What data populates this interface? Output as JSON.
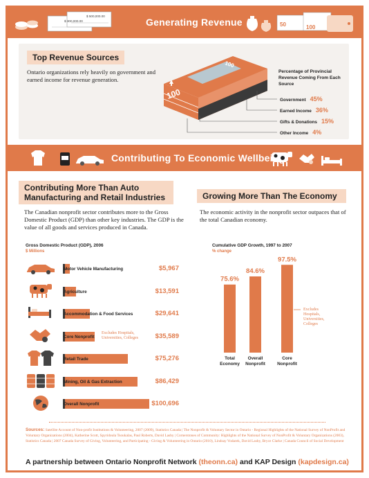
{
  "header": {
    "title": "Generating Revenue",
    "cheque_amount_1": "$ 500,000.00",
    "cheque_amount_2": "$ 300,000.00",
    "bill_value_small": "50",
    "bill_value_large": "100"
  },
  "top_revenue": {
    "heading": "Top Revenue Sources",
    "intro": "Ontario organizations rely heavily on government and earned income for revenue generation.",
    "legend_title": "Percentage of Provincial Revenue Coming From Each Source",
    "bill_value": "100",
    "sources": [
      {
        "label": "Government",
        "pct_label": "45%",
        "value": 45
      },
      {
        "label": "Earned Income",
        "pct_label": "36%",
        "value": 36
      },
      {
        "label": "Gifts & Donations",
        "pct_label": "15%",
        "value": 15
      },
      {
        "label": "Other Income",
        "pct_label": "4%",
        "value": 4
      }
    ]
  },
  "wellbeing": {
    "title": "Contributing To Economic Wellbeing"
  },
  "auto": {
    "heading_line1": "Contributing More Than Auto",
    "heading_line2": "Manufacturing and Retail Industries",
    "body": "The Canadian nonprofit sector contributes more to the Gross Domestic Product (GDP) than other key industries. The GDP is the value of all goods and services produced in Canada."
  },
  "growing": {
    "heading": "Growing More Than The Economy",
    "body": "The economic activity in the nonprofit sector outpaces that of the total Canadian economy."
  },
  "chart_data": [
    {
      "type": "bar",
      "orientation": "horizontal",
      "title": "Gross Domestic Product (GDP), 2006",
      "unit_label": "$ Millions",
      "categories": [
        "Motor Vehicle Manufacturing",
        "Agriculture",
        "Accommodation & Food Services",
        "Core Nonprofit",
        "Retail Trade",
        "Mining, Oil & Gas Extraction",
        "Overall Nonprofit"
      ],
      "values": [
        5967,
        13591,
        29641,
        35589,
        75276,
        86429,
        100696
      ],
      "value_labels": [
        "$5,967",
        "$13,591",
        "$29,641",
        "$35,589",
        "$75,276",
        "$86,429",
        "$100,696"
      ],
      "annotation": "Excludes Hospitals, Universities, Colleges",
      "xlim": [
        0,
        100696
      ]
    },
    {
      "type": "bar",
      "title": "Cumulative GDP Growth, 1997 to 2007",
      "unit_label": "% change",
      "categories": [
        "Total Economy",
        "Overall Nonprofit",
        "Core Nonprofit"
      ],
      "values": [
        75.6,
        84.6,
        97.5
      ],
      "value_labels": [
        "75.6%",
        "84.6%",
        "97.5%"
      ],
      "annotation": "Excludes Hospitals, Universities, Colleges",
      "ylim": [
        0,
        100
      ]
    }
  ],
  "footer": {
    "sources_label": "Sources:",
    "sources_text": "Satellite Account of Non-profit Institutions & Volunteering, 2007 (2009), Statistics Canada | The Nonprofit & Voluntary Sector in Ontario - Regional Highlights of the National Survey of NonProfit and Voluntary Organizations (2004), Katherine Scott, Spyridoula Tsoukalas, Paul Roberts, David Lasby | Cornerstones of Community: Highlights of the National Survey of NonProfit & Voluntary Organizations (2003), Statistics Canada | 2007 Canada Survey of Giving, Volunteering, and Participating - Giving & Volunteering in Ontario (2010), Lindsay Vodarek, David Lasby, Bryce Clarke | Canada Council of Social Development",
    "partner_prefix": "A partnership between Ontario Nonprofit Network",
    "partner_link1": "(theonn.ca)",
    "partner_mid": "and KAP Design",
    "partner_link2": "(kapdesign.ca)"
  },
  "colors": {
    "accent": "#e07a4a",
    "accent_light": "#f7d8c4",
    "dark": "#3a3a3a",
    "panel": "#f4f1ee"
  },
  "icons": [
    "cheque-icon",
    "coin-jar-icon",
    "money-bag-icon",
    "wallet-icon",
    "tshirt-icon",
    "fuel-can-icon",
    "car-icon",
    "cow-icon",
    "handshake-icon",
    "bed-icon",
    "oil-barrel-icon",
    "globe-icon",
    "maple-leaf-icon"
  ]
}
